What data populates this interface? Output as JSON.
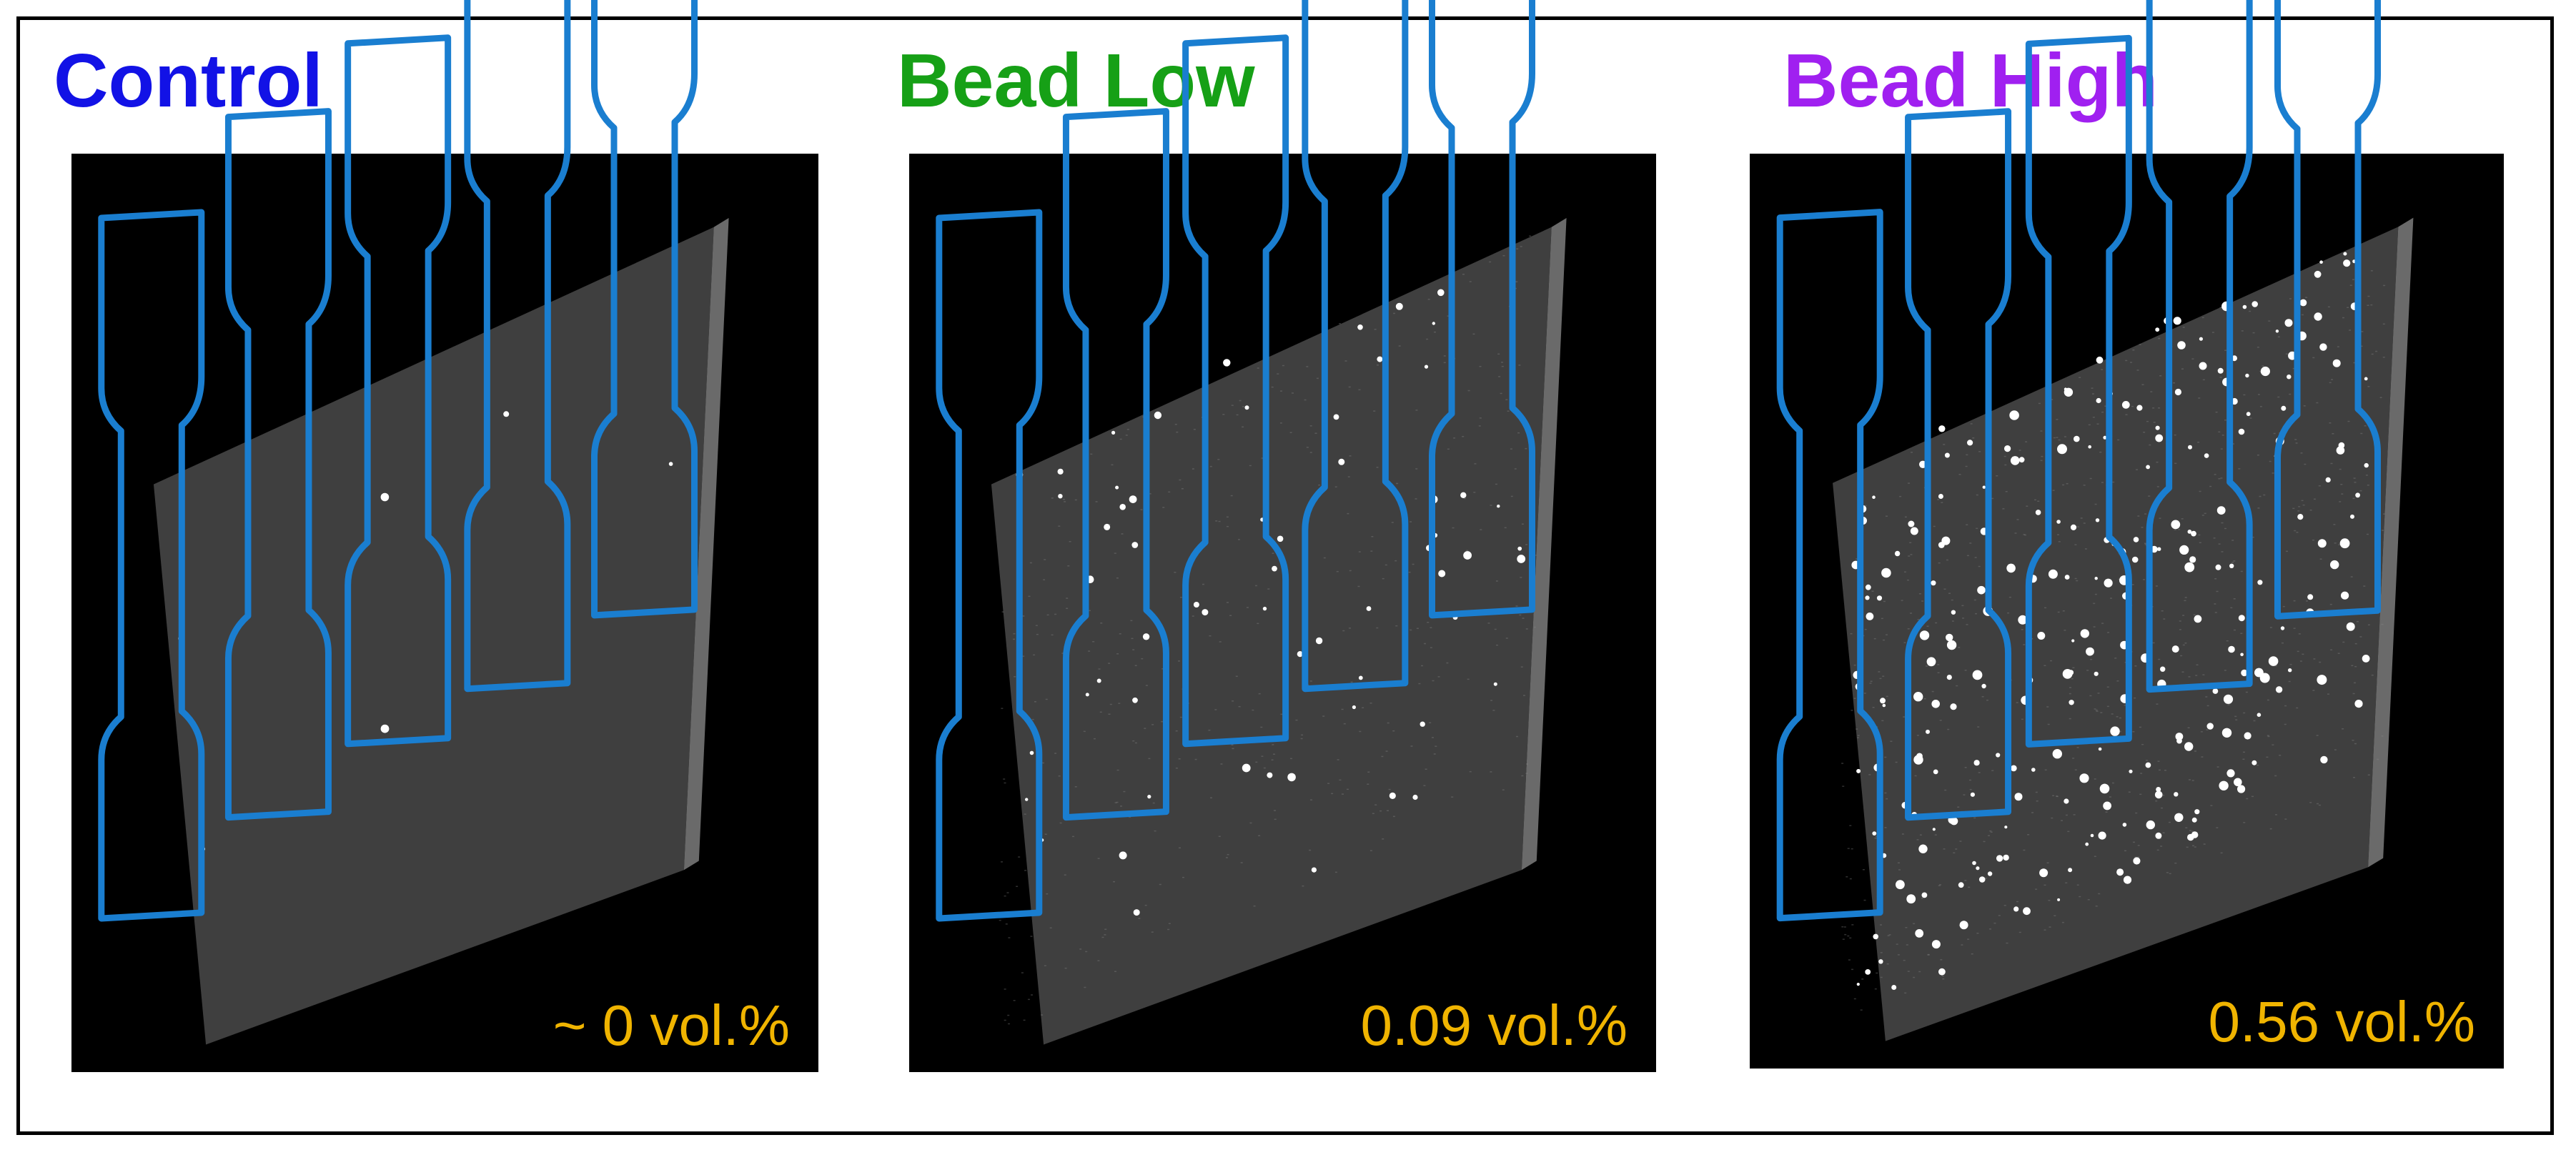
{
  "panels": [
    {
      "title": "Control",
      "title_color": "#1212e6",
      "volume_label": "~ 0 vol.%",
      "bead_density": "none"
    },
    {
      "title": "Bead Low",
      "title_color": "#16a016",
      "volume_label": "0.09 vol.%",
      "bead_density": "low"
    },
    {
      "title": "Bead High",
      "title_color": "#a020f0",
      "volume_label": "0.56 vol.%",
      "bead_density": "high"
    }
  ],
  "colors": {
    "outline": "#1a7ed0",
    "volume_label": "#f0b400",
    "plate": "#4a4a4a",
    "background": "#000000"
  }
}
